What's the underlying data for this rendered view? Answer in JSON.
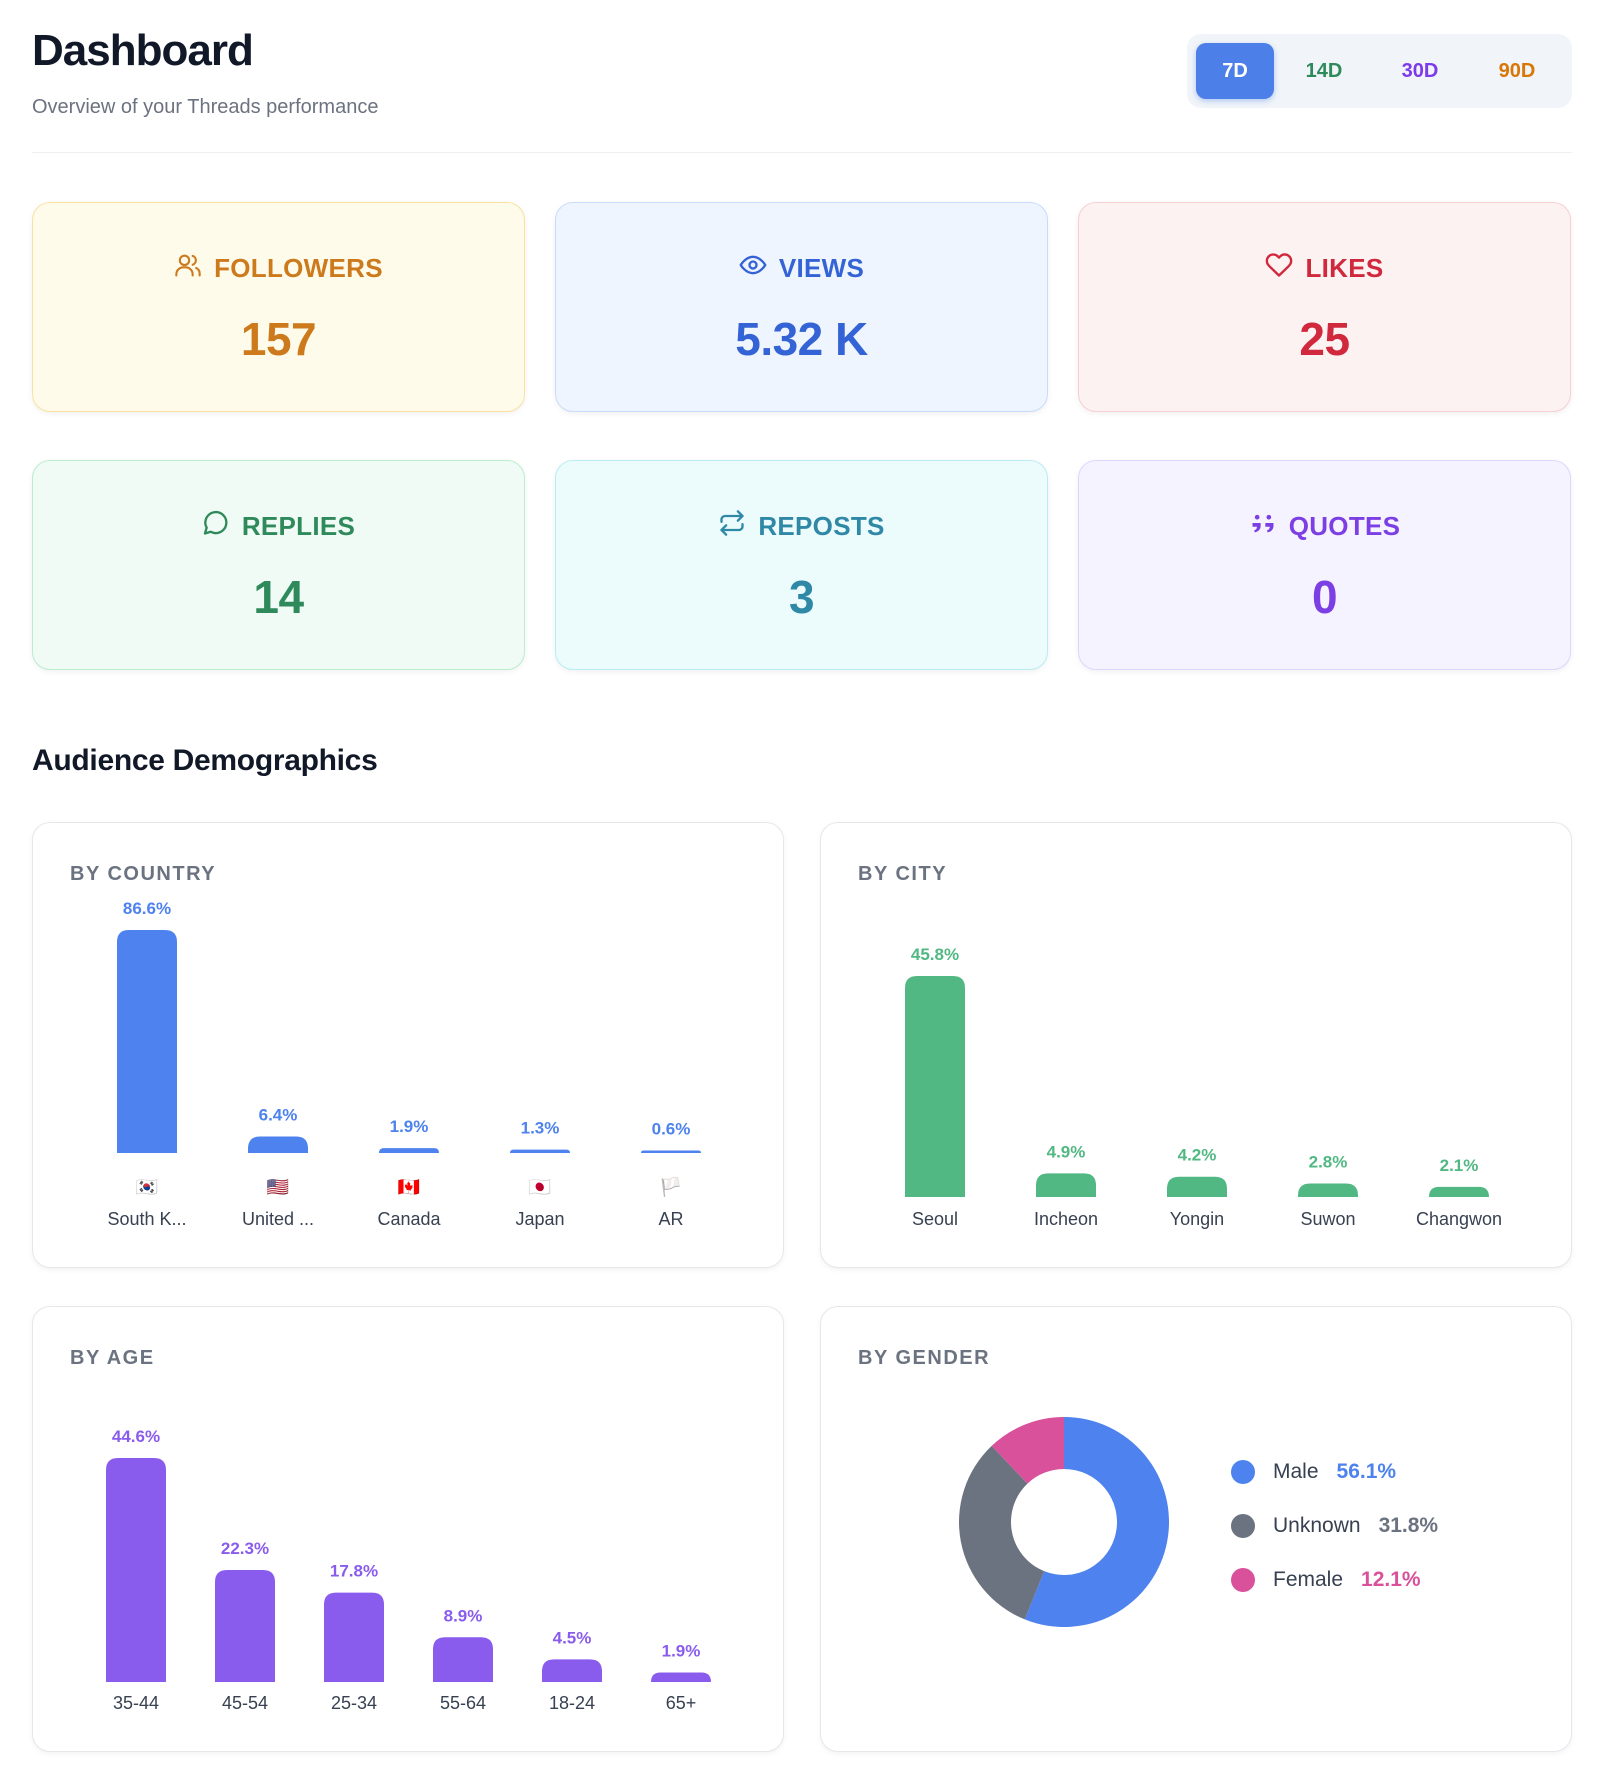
{
  "header": {
    "title": "Dashboard",
    "subtitle": "Overview of your Threads performance"
  },
  "ranges": [
    {
      "label": "7D",
      "color": "#ffffff",
      "active": true
    },
    {
      "label": "14D",
      "color": "#2f8a5b",
      "active": false
    },
    {
      "label": "30D",
      "color": "#7c3aed",
      "active": false
    },
    {
      "label": "90D",
      "color": "#d97706",
      "active": false
    }
  ],
  "stats": [
    {
      "label": "FOLLOWERS",
      "value": "157",
      "icon": "users-icon",
      "color": "#cc7a1c",
      "bg": "#fffbeb",
      "border": "#fbe1a0"
    },
    {
      "label": "VIEWS",
      "value": "5.32 K",
      "icon": "eye-icon",
      "color": "#3463d6",
      "bg": "#eff5fe",
      "border": "#c9dbfb"
    },
    {
      "label": "LIKES",
      "value": "25",
      "icon": "heart-icon",
      "color": "#d0283c",
      "bg": "#fdf2f2",
      "border": "#f8cfd2"
    },
    {
      "label": "REPLIES",
      "value": "14",
      "icon": "message-circle-icon",
      "color": "#2f8a5b",
      "bg": "#effbf4",
      "border": "#bdeccf"
    },
    {
      "label": "REPOSTS",
      "value": "3",
      "icon": "repeat-icon",
      "color": "#2f88a6",
      "bg": "#ecfcfd",
      "border": "#b9ecf3"
    },
    {
      "label": "QUOTES",
      "value": "0",
      "icon": "quote-icon",
      "color": "#7b3fe4",
      "bg": "#f5f3ff",
      "border": "#ddd6fe"
    }
  ],
  "demographics": {
    "section_title": "Audience Demographics",
    "country": {
      "title": "BY COUNTRY"
    },
    "city": {
      "title": "BY CITY"
    },
    "age": {
      "title": "BY AGE"
    },
    "gender": {
      "title": "BY GENDER"
    }
  },
  "chart_data": [
    {
      "id": "country",
      "type": "bar",
      "title": "BY COUNTRY",
      "color": "#4d82ef",
      "categories": [
        "South K...",
        "United ...",
        "Canada",
        "Japan",
        "AR"
      ],
      "flags": [
        "🇰🇷",
        "🇺🇸",
        "🇨🇦",
        "🇯🇵",
        "🏳️"
      ],
      "values": [
        86.6,
        6.4,
        1.9,
        1.3,
        0.6
      ],
      "labels": [
        "86.6%",
        "6.4%",
        "1.9%",
        "1.3%",
        "0.6%"
      ],
      "ylim": [
        0,
        86.6
      ]
    },
    {
      "id": "city",
      "type": "bar",
      "title": "BY CITY",
      "color": "#52b883",
      "categories": [
        "Seoul",
        "Incheon",
        "Yongin",
        "Suwon",
        "Changwon"
      ],
      "values": [
        45.8,
        4.9,
        4.2,
        2.8,
        2.1
      ],
      "labels": [
        "45.8%",
        "4.9%",
        "4.2%",
        "2.8%",
        "2.1%"
      ],
      "ylim": [
        0,
        45.8
      ]
    },
    {
      "id": "age",
      "type": "bar",
      "title": "BY AGE",
      "color": "#8a5ced",
      "categories": [
        "35-44",
        "45-54",
        "25-34",
        "55-64",
        "18-24",
        "65+"
      ],
      "values": [
        44.6,
        22.3,
        17.8,
        8.9,
        4.5,
        1.9
      ],
      "labels": [
        "44.6%",
        "22.3%",
        "17.8%",
        "8.9%",
        "4.5%",
        "1.9%"
      ],
      "ylim": [
        0,
        44.6
      ]
    },
    {
      "id": "gender",
      "type": "pie",
      "title": "BY GENDER",
      "categories": [
        "Male",
        "Unknown",
        "Female"
      ],
      "values": [
        56.1,
        31.8,
        12.1
      ],
      "labels": [
        "56.1%",
        "31.8%",
        "12.1%"
      ],
      "colors": [
        "#4d82ef",
        "#6b7280",
        "#d9519a"
      ]
    }
  ]
}
